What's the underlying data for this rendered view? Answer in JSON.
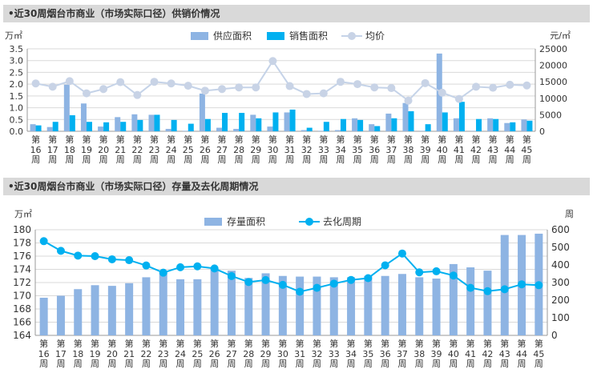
{
  "charts": [
    {
      "type": "bar",
      "title": "•近30周烟台市商业（市场实际口径）供销价情况",
      "left_unit": "万㎡",
      "right_unit": "元/㎡",
      "categories": [
        "第16周",
        "第17周",
        "第18周",
        "第19周",
        "第20周",
        "第21周",
        "第22周",
        "第23周",
        "第24周",
        "第25周",
        "第26周",
        "第27周",
        "第28周",
        "第29周",
        "第30周",
        "第31周",
        "第32周",
        "第33周",
        "第34周",
        "第35周",
        "第36周",
        "第37周",
        "第38周",
        "第39周",
        "第40周",
        "第41周",
        "第42周",
        "第43周",
        "第44周",
        "第45周"
      ],
      "left_ticks": [
        "0.0",
        "0.5",
        "1.0",
        "1.5",
        "2.0",
        "2.5",
        "3.0",
        "3.5"
      ],
      "right_ticks": [
        "0",
        "5000",
        "10000",
        "15000",
        "20000",
        "25000"
      ],
      "ylim": [
        0,
        3.5
      ],
      "y2lim": [
        0,
        25000
      ],
      "legend_position": "top",
      "colors": {
        "supply": "#8eb4e3",
        "sales": "#00b0f0",
        "price_line": "#c5d3e8",
        "price_marker": "#c8d3e6"
      },
      "series": [
        {
          "name": "供应面积",
          "axis": "left",
          "values": [
            0.3,
            0.18,
            1.98,
            1.18,
            0.2,
            0.6,
            0.72,
            0.7,
            0.1,
            0.02,
            1.6,
            0.15,
            0.1,
            0.7,
            0.2,
            0.8,
            0.05,
            0.02,
            0.05,
            0.55,
            0.3,
            0.75,
            1.2,
            0.02,
            3.3,
            0.55,
            0.02,
            0.55,
            0.35,
            0.5
          ]
        },
        {
          "name": "销售面积",
          "axis": "left",
          "values": [
            0.25,
            0.4,
            0.68,
            0.4,
            0.38,
            0.4,
            0.48,
            0.7,
            0.48,
            0.32,
            0.52,
            0.78,
            0.78,
            0.55,
            0.8,
            0.92,
            0.15,
            0.4,
            0.52,
            0.48,
            0.22,
            0.55,
            0.85,
            0.3,
            0.8,
            1.25,
            0.52,
            0.52,
            0.38,
            0.45
          ]
        },
        {
          "name": "均价",
          "axis": "right",
          "values": [
            14500,
            13500,
            15200,
            11500,
            12800,
            14900,
            11000,
            15000,
            14500,
            13800,
            12300,
            12800,
            13300,
            13300,
            21300,
            13700,
            11300,
            11500,
            15000,
            14300,
            13300,
            13100,
            9300,
            14600,
            11700,
            9800,
            13500,
            13200,
            14100,
            13900
          ]
        }
      ]
    },
    {
      "type": "bar",
      "title": "•近30周烟台市商业（市场实际口径）存量及去化周期情况",
      "left_unit": "万㎡",
      "right_unit": "周",
      "categories": [
        "第16周",
        "第17周",
        "第18周",
        "第19周",
        "第20周",
        "第21周",
        "第22周",
        "第23周",
        "第24周",
        "第25周",
        "第26周",
        "第27周",
        "第28周",
        "第29周",
        "第30周",
        "第31周",
        "第32周",
        "第33周",
        "第34周",
        "第35周",
        "第36周",
        "第37周",
        "第38周",
        "第39周",
        "第40周",
        "第41周",
        "第42周",
        "第43周",
        "第44周",
        "第45周"
      ],
      "left_ticks": [
        "164",
        "166",
        "168",
        "170",
        "172",
        "174",
        "176",
        "178",
        "180"
      ],
      "right_ticks": [
        "0",
        "100",
        "200",
        "300",
        "400",
        "500",
        "600"
      ],
      "ylim": [
        164,
        180
      ],
      "y2lim": [
        0,
        600
      ],
      "legend_position": "top",
      "colors": {
        "stock": "#8eb4e3",
        "period_line": "#00b0f0",
        "period_marker": "#00b0f0"
      },
      "series": [
        {
          "name": "存量面积",
          "axis": "left",
          "values": [
            169.7,
            170.0,
            171.0,
            171.6,
            171.5,
            171.9,
            172.8,
            173.5,
            172.5,
            172.5,
            174.1,
            173.8,
            172.7,
            173.4,
            173.0,
            172.9,
            172.9,
            172.8,
            172.8,
            173.0,
            173.0,
            173.3,
            172.8,
            172.6,
            174.8,
            174.3,
            173.8,
            179.2,
            179.2,
            179.4
          ]
        },
        {
          "name": "去化周期",
          "axis": "right",
          "values": [
            535,
            480,
            453,
            450,
            432,
            427,
            397,
            356,
            387,
            392,
            380,
            337,
            303,
            314,
            287,
            248,
            270,
            294,
            315,
            325,
            398,
            465,
            358,
            364,
            340,
            270,
            251,
            262,
            290,
            285
          ]
        }
      ]
    }
  ]
}
